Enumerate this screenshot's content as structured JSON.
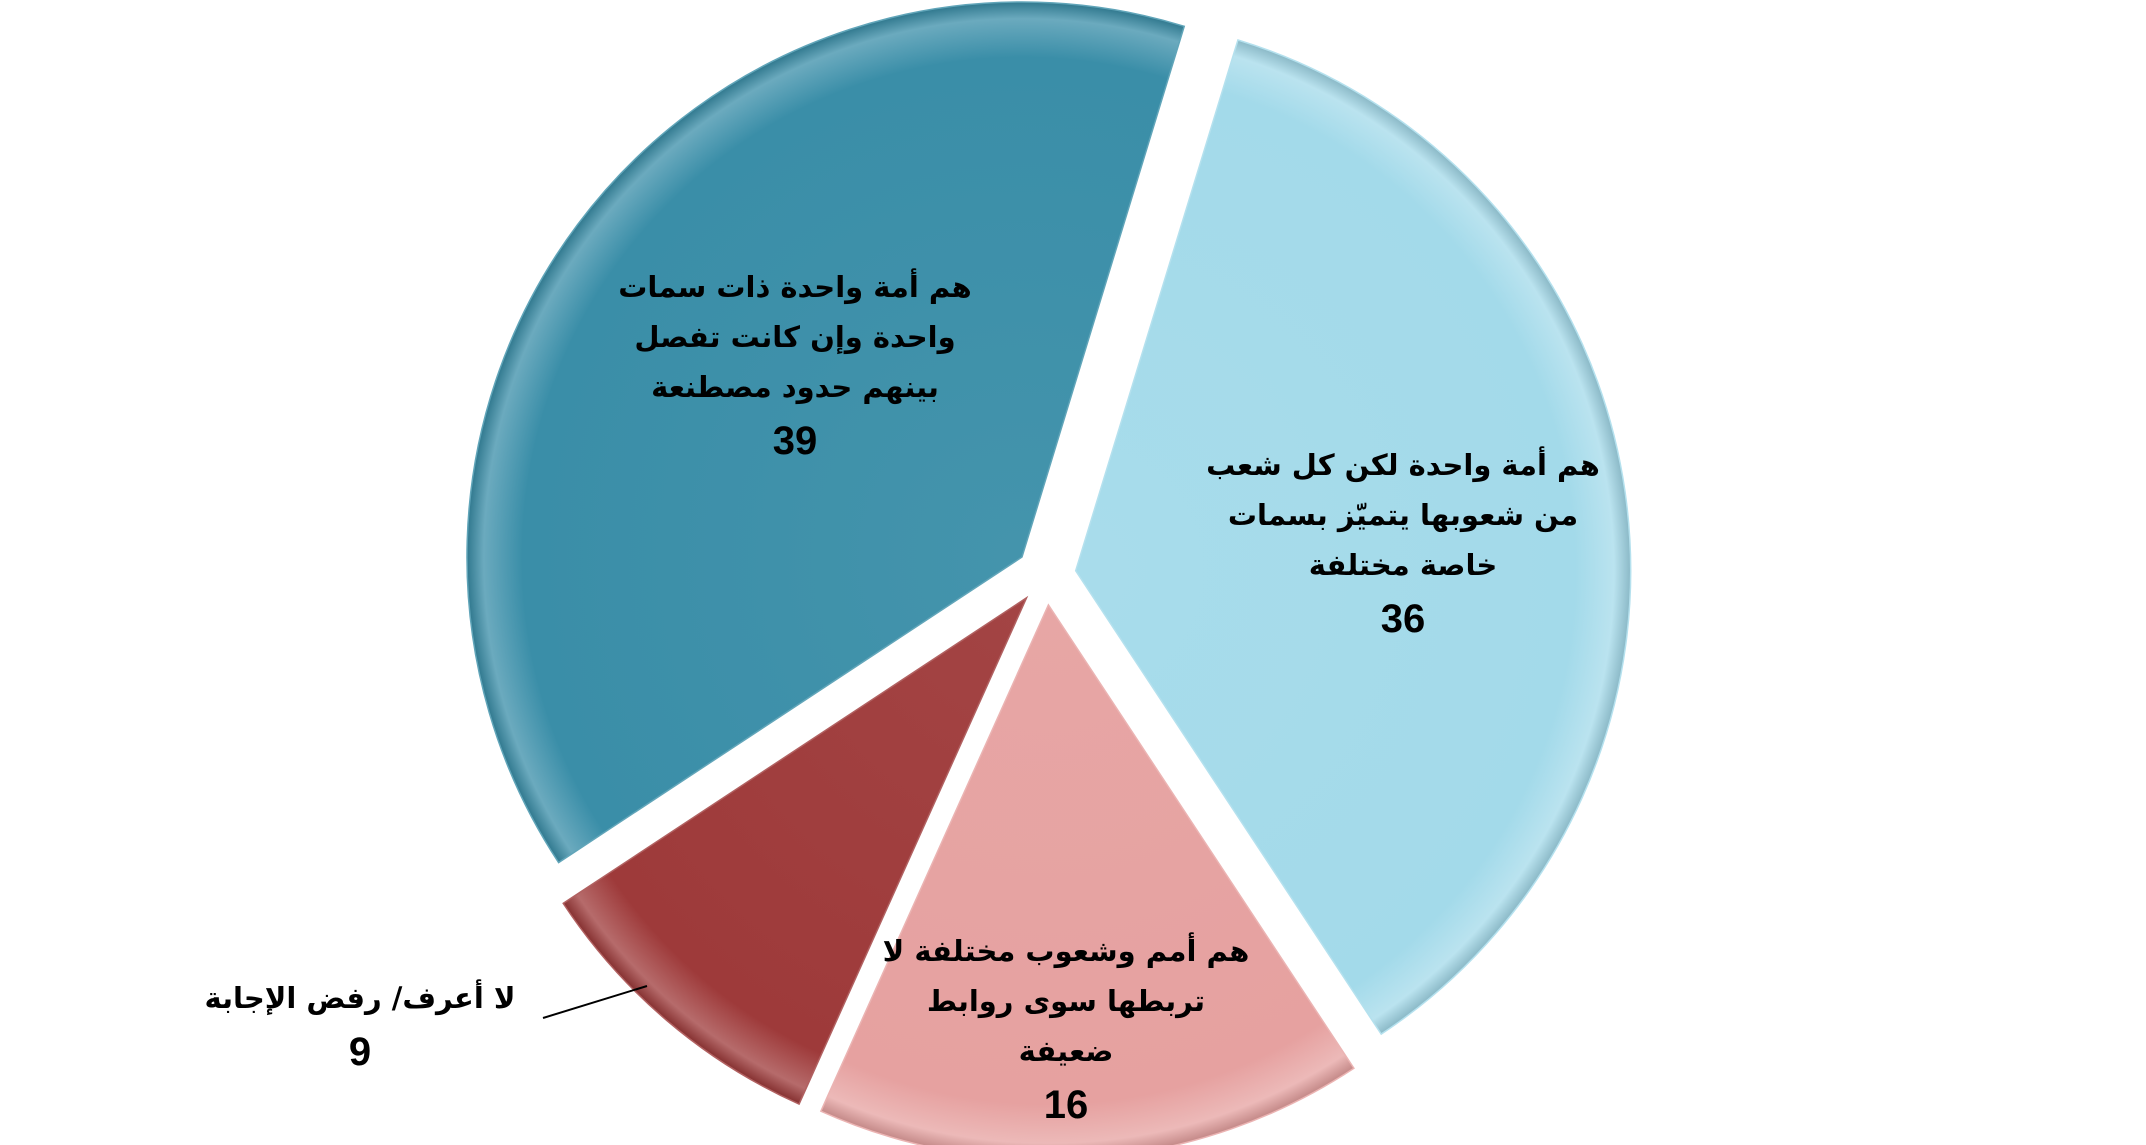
{
  "chart_data": {
    "type": "pie",
    "exploded": true,
    "start_angle_deg_clockwise_from_top": 17,
    "slices": [
      {
        "label": [
          "هم أمة واحدة لكن كل شعب",
          "من شعوبها يتميّز بسمات",
          "خاصة مختلفة"
        ],
        "value": 36,
        "color": "#A3DAEA"
      },
      {
        "label": [
          "هم أمم وشعوب مختلفة لا",
          "تربطها سوى روابط",
          "ضعيفة"
        ],
        "value": 16,
        "color": "#E6A1A0"
      },
      {
        "label": [
          "لا أعرف/ رفض الإجابة"
        ],
        "value": 9,
        "color": "#9E3A3A"
      },
      {
        "label": [
          "هم أمة واحدة ذات سمات",
          "واحدة وإن كانت تفصل",
          "بينهم حدود مصطنعة"
        ],
        "value": 39,
        "color": "#3A8EA8"
      }
    ]
  }
}
